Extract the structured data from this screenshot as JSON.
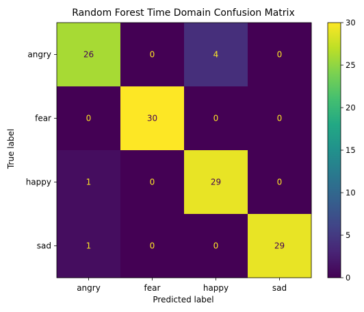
{
  "chart_data": {
    "type": "heatmap",
    "title": "Random Forest Time Domain Confusion Matrix",
    "xlabel": "Predicted label",
    "ylabel": "True label",
    "x_categories": [
      "angry",
      "fear",
      "happy",
      "sad"
    ],
    "y_categories": [
      "angry",
      "fear",
      "happy",
      "sad"
    ],
    "values": [
      [
        26,
        0,
        4,
        0
      ],
      [
        0,
        30,
        0,
        0
      ],
      [
        1,
        0,
        29,
        0
      ],
      [
        1,
        0,
        0,
        29
      ]
    ],
    "colorscale": "viridis",
    "vmin": 0,
    "vmax": 30,
    "colorbar_ticks": [
      0,
      5,
      10,
      15,
      20,
      25,
      30
    ],
    "text_color_light_cells": "#440154",
    "text_color_dark_cells": "#fde725"
  }
}
